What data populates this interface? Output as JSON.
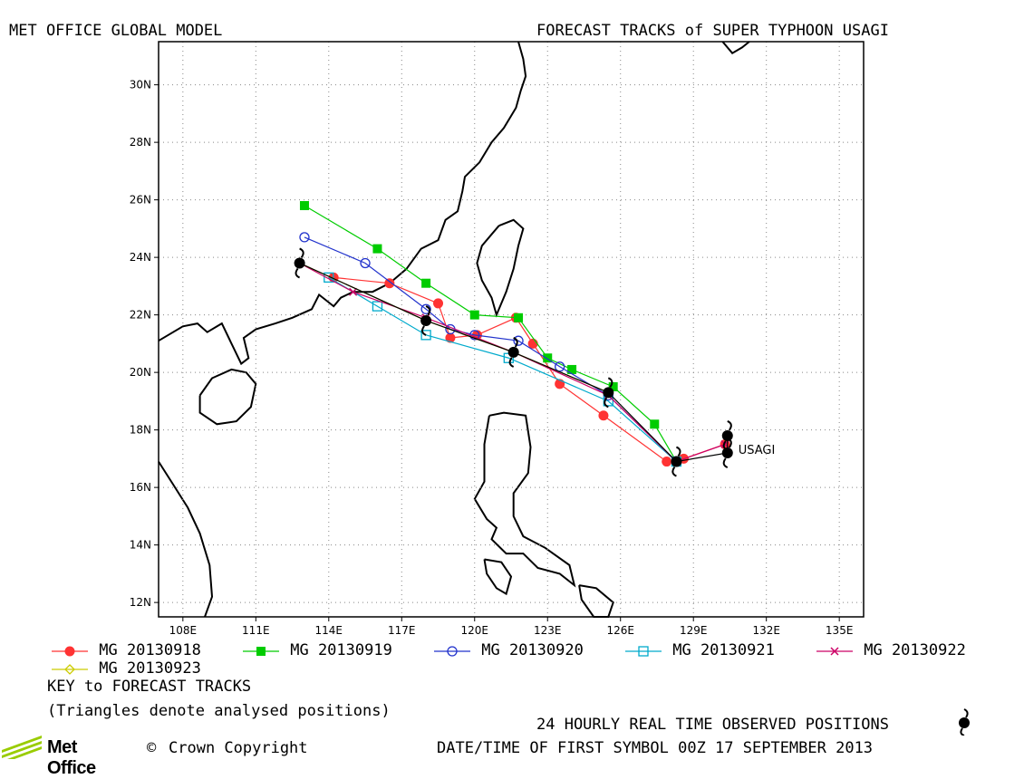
{
  "header": {
    "left_title": "MET OFFICE GLOBAL MODEL",
    "right_title": "FORECAST TRACKS of SUPER TYPHOON USAGI"
  },
  "map": {
    "lon_range": [
      107,
      136
    ],
    "lat_range": [
      11.5,
      31.5
    ],
    "lon_ticks": [
      "108E",
      "111E",
      "114E",
      "117E",
      "120E",
      "123E",
      "126E",
      "129E",
      "132E",
      "135E"
    ],
    "lat_ticks": [
      "12N",
      "14N",
      "16N",
      "18N",
      "20N",
      "22N",
      "24N",
      "26N",
      "28N",
      "30N"
    ],
    "storm_label": "USAGI",
    "colors": {
      "t0918": "#ff3333",
      "t0919": "#00cc00",
      "t0920": "#2233cc",
      "t0921": "#00aacc",
      "t0922": "#cc0066",
      "t0923": "#cccc00",
      "observed": "#000000"
    }
  },
  "chart_data": {
    "type": "line",
    "xlabel": "",
    "ylabel": "",
    "xlim": [
      107,
      136
    ],
    "ylim": [
      11.5,
      31.5
    ],
    "series": [
      {
        "name": "MG 20130918",
        "marker": "filled-circle",
        "color": "#ff3333",
        "points": [
          [
            130.3,
            17.5
          ],
          [
            128.6,
            17.0
          ],
          [
            127.9,
            16.9
          ],
          [
            125.3,
            18.5
          ],
          [
            123.5,
            19.6
          ],
          [
            122.4,
            21.0
          ],
          [
            121.7,
            21.9
          ],
          [
            120.1,
            21.3
          ],
          [
            119.0,
            21.2
          ],
          [
            118.5,
            22.4
          ],
          [
            116.5,
            23.1
          ],
          [
            114.2,
            23.3
          ]
        ]
      },
      {
        "name": "MG 20130919",
        "marker": "filled-square",
        "color": "#00cc00",
        "points": [
          [
            128.3,
            16.9
          ],
          [
            127.4,
            18.2
          ],
          [
            125.7,
            19.5
          ],
          [
            124.0,
            20.1
          ],
          [
            123.0,
            20.5
          ],
          [
            121.8,
            21.9
          ],
          [
            120.0,
            22.0
          ],
          [
            118.0,
            23.1
          ],
          [
            116.0,
            24.3
          ],
          [
            113.0,
            25.8
          ]
        ]
      },
      {
        "name": "MG 20130920",
        "marker": "open-circle",
        "color": "#2233cc",
        "points": [
          [
            128.3,
            16.9
          ],
          [
            125.5,
            19.2
          ],
          [
            123.5,
            20.2
          ],
          [
            121.8,
            21.1
          ],
          [
            120.0,
            21.3
          ],
          [
            119.0,
            21.5
          ],
          [
            118.0,
            22.2
          ],
          [
            115.5,
            23.8
          ],
          [
            113.0,
            24.7
          ]
        ]
      },
      {
        "name": "MG 20130921",
        "marker": "open-square",
        "color": "#00aacc",
        "points": [
          [
            128.3,
            16.9
          ],
          [
            125.5,
            19.0
          ],
          [
            121.4,
            20.5
          ],
          [
            118.0,
            21.3
          ],
          [
            116.0,
            22.3
          ],
          [
            114.0,
            23.3
          ]
        ]
      },
      {
        "name": "MG 20130922",
        "marker": "cross",
        "color": "#cc0066",
        "points": [
          [
            130.3,
            17.5
          ],
          [
            128.3,
            16.9
          ],
          [
            125.5,
            19.2
          ],
          [
            121.6,
            20.7
          ],
          [
            118.0,
            21.9
          ],
          [
            115.0,
            22.8
          ],
          [
            112.8,
            23.8
          ]
        ]
      },
      {
        "name": "MG 20130923",
        "marker": "open-diamond",
        "color": "#cccc00",
        "points": [
          [
            125.5,
            19.3
          ],
          [
            121.6,
            20.7
          ],
          [
            118.0,
            21.8
          ],
          [
            112.8,
            23.8
          ]
        ]
      },
      {
        "name": "",
        "marker": "typhoon",
        "color": "#000000",
        "points": [
          [
            130.4,
            17.8
          ],
          [
            130.4,
            17.2
          ],
          [
            128.3,
            16.9
          ],
          [
            125.5,
            19.3
          ],
          [
            121.6,
            20.7
          ],
          [
            118.0,
            21.8
          ],
          [
            112.8,
            23.8
          ]
        ]
      }
    ],
    "label_point": [
      130.4,
      17.3
    ]
  },
  "legend": {
    "items": [
      "MG 20130918",
      "MG 20130919",
      "MG 20130920",
      "MG 20130921",
      "MG 20130922",
      "MG 20130923"
    ],
    "key_title": "KEY to FORECAST TRACKS",
    "note": "(Triangles denote analysed positions)"
  },
  "footer": {
    "observed_label": "24 HOURLY REAL TIME OBSERVED POSITIONS",
    "date_label": "DATE/TIME OF FIRST SYMBOL 00Z 17 SEPTEMBER 2013",
    "logo_text": "Met Office",
    "copyright": "Crown Copyright"
  }
}
